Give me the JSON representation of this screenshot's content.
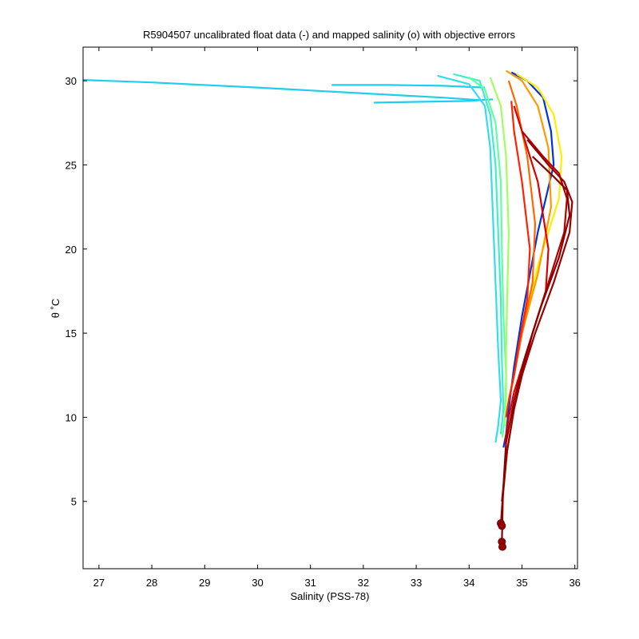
{
  "chart_data": {
    "type": "line",
    "title": "R5904507 uncalibrated float data (-) and mapped salinity (o) with objective errors",
    "xlabel": "Salinity (PSS-78)",
    "ylabel": "θ ˚C",
    "xlim": [
      26.7,
      36.05
    ],
    "ylim": [
      1.0,
      32.0
    ],
    "xticks": [
      27,
      28,
      29,
      30,
      31,
      32,
      33,
      34,
      35,
      36
    ],
    "yticks": [
      5,
      10,
      15,
      20,
      25,
      30
    ],
    "grid": false,
    "colormap": [
      "#00008f",
      "#0000ff",
      "#0080ff",
      "#00d0ff",
      "#40ffc0",
      "#a0ff60",
      "#ffff00",
      "#ff9000",
      "#ff2000",
      "#a00000",
      "#800000"
    ],
    "series": [
      {
        "color": "#22ccee",
        "x": [
          26.7,
          28.0,
          30.0,
          32.0,
          33.5,
          34.2
        ],
        "y": [
          30.05,
          29.9,
          29.6,
          29.25,
          29.0,
          28.85
        ]
      },
      {
        "color": "#22ccee",
        "x": [
          31.4,
          32.5,
          33.5,
          34.3
        ],
        "y": [
          29.75,
          29.75,
          29.7,
          29.6
        ]
      },
      {
        "color": "#22ccee",
        "x": [
          32.2,
          33.0,
          34.0,
          34.45
        ],
        "y": [
          28.7,
          28.75,
          28.8,
          28.9
        ]
      },
      {
        "color": "#33ddee",
        "x": [
          33.4,
          34.0,
          34.3,
          34.4,
          34.45,
          34.5,
          34.55,
          34.6,
          34.55,
          34.5
        ],
        "y": [
          30.3,
          29.8,
          28.5,
          26.0,
          22.0,
          18.0,
          14.0,
          11.0,
          9.5,
          8.5
        ]
      },
      {
        "color": "#40eec8",
        "x": [
          33.7,
          34.2,
          34.4,
          34.5,
          34.55,
          34.6,
          34.62,
          34.65,
          34.6
        ],
        "y": [
          30.4,
          30.0,
          28.0,
          25.0,
          21.0,
          17.0,
          13.5,
          10.5,
          9.0
        ]
      },
      {
        "color": "#60ffa0",
        "x": [
          34.0,
          34.3,
          34.5,
          34.6,
          34.62,
          34.65,
          34.7,
          34.68,
          34.63
        ],
        "y": [
          30.2,
          29.5,
          27.5,
          24.0,
          20.0,
          16.0,
          12.5,
          10.0,
          8.8
        ]
      },
      {
        "color": "#a0ff60",
        "x": [
          34.4,
          34.6,
          34.7,
          34.75,
          34.72,
          34.7,
          34.7,
          34.68
        ],
        "y": [
          30.2,
          28.5,
          25.5,
          21.0,
          17.0,
          14.0,
          11.0,
          9.5
        ]
      },
      {
        "color": "#0033dd",
        "x": [
          34.8,
          35.1,
          35.4,
          35.55,
          35.6,
          35.3,
          35.0,
          34.85,
          34.75,
          34.7,
          34.65
        ],
        "y": [
          30.5,
          30.0,
          29.0,
          27.0,
          25.0,
          21.0,
          16.0,
          13.0,
          10.5,
          9.0,
          8.2
        ]
      },
      {
        "color": "#ffee00",
        "x": [
          34.9,
          35.3,
          35.6,
          35.75,
          35.7,
          35.3,
          35.0,
          34.85,
          34.75
        ],
        "y": [
          30.4,
          29.6,
          28.0,
          25.5,
          23.0,
          19.0,
          15.0,
          12.5,
          11.0
        ]
      },
      {
        "color": "#ff9900",
        "x": [
          34.7,
          35.0,
          35.3,
          35.5,
          35.55,
          35.3,
          35.0,
          34.85,
          34.75
        ],
        "y": [
          30.6,
          30.0,
          28.5,
          26.0,
          22.5,
          18.5,
          15.0,
          12.5,
          11.0
        ]
      },
      {
        "color": "#ff6600",
        "x": [
          34.75,
          34.9,
          35.1,
          35.25,
          35.2,
          35.0,
          34.85,
          34.75
        ],
        "y": [
          30.0,
          28.5,
          25.5,
          21.5,
          18.0,
          15.0,
          12.5,
          11.0
        ]
      },
      {
        "color": "#ff2200",
        "x": [
          34.8,
          34.85,
          35.0,
          35.15,
          35.1,
          34.95,
          34.85,
          34.75,
          34.7
        ],
        "y": [
          28.8,
          27.0,
          24.0,
          20.0,
          17.0,
          14.5,
          12.5,
          11.0,
          10.0
        ]
      },
      {
        "color": "#dd0000",
        "x": [
          34.85,
          35.0,
          35.3,
          35.5,
          35.45,
          35.2,
          35.0,
          34.85,
          34.75,
          34.68
        ],
        "y": [
          28.5,
          27.0,
          24.0,
          20.0,
          17.5,
          15.0,
          13.0,
          11.5,
          10.0,
          8.5
        ]
      },
      {
        "color": "#b00000",
        "x": [
          35.0,
          35.4,
          35.7,
          35.85,
          35.8,
          35.5,
          35.2,
          35.0,
          34.85,
          34.72,
          34.62
        ],
        "y": [
          27.0,
          25.5,
          24.5,
          23.0,
          21.0,
          18.0,
          15.0,
          12.5,
          10.5,
          8.0,
          5.0
        ]
      },
      {
        "color": "#990000",
        "x": [
          35.1,
          35.5,
          35.8,
          35.95,
          35.9,
          35.6,
          35.25,
          35.0,
          34.85,
          34.72,
          34.63,
          34.6
        ],
        "y": [
          26.5,
          25.0,
          24.0,
          22.8,
          21.0,
          18.0,
          15.0,
          12.5,
          10.5,
          8.0,
          5.0,
          3.6
        ]
      },
      {
        "color": "#880000",
        "x": [
          35.2,
          35.6,
          35.85,
          35.9,
          35.7,
          35.35,
          35.05,
          34.85,
          34.7,
          34.64,
          34.62
        ],
        "y": [
          25.5,
          24.3,
          23.5,
          22.0,
          19.5,
          16.5,
          13.5,
          11.0,
          8.5,
          5.5,
          2.5
        ]
      }
    ],
    "markers": [
      {
        "color": "#990000",
        "x": 34.6,
        "y": 3.7
      },
      {
        "color": "#990000",
        "x": 34.62,
        "y": 3.55
      },
      {
        "color": "#990000",
        "x": 34.62,
        "y": 2.6
      },
      {
        "color": "#990000",
        "x": 34.63,
        "y": 2.3
      }
    ]
  }
}
